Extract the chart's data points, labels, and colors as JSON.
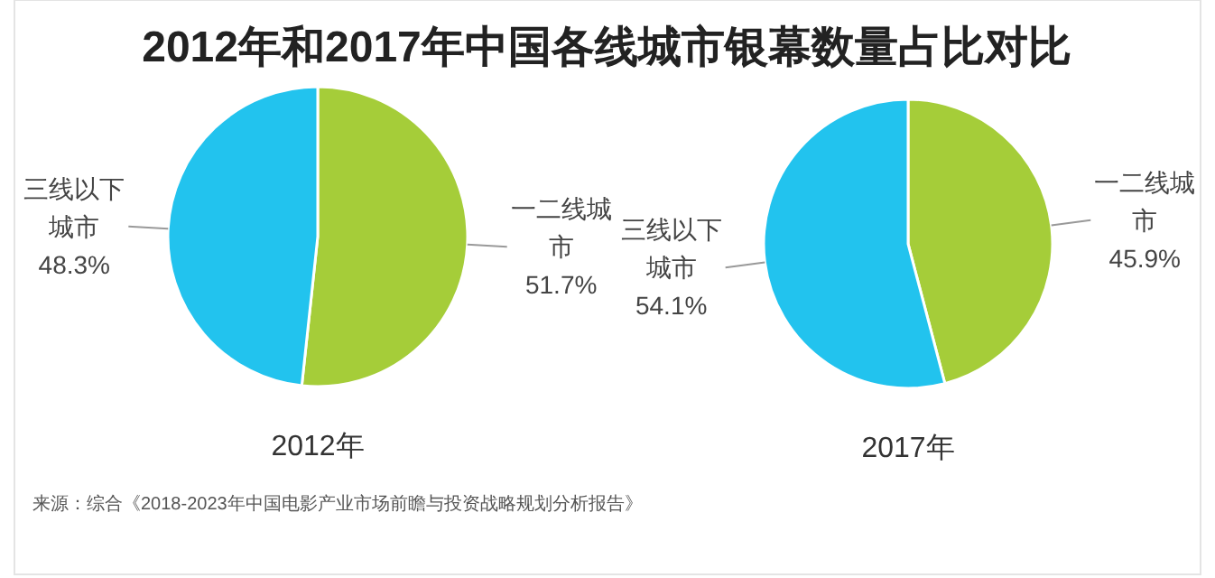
{
  "chart_data": [
    {
      "type": "other",
      "title": "2012年和2017年中国各线城市银幕数量占比对比",
      "annotations": [
        "来源：综合《2018-2023年中国电影产业市场前瞻与投资战略规划分析报告》"
      ]
    },
    {
      "type": "pie",
      "xlabel": "2012年",
      "categories": [
        "一二线城市",
        "三线以下城市"
      ],
      "values": [
        51.7,
        48.3
      ],
      "value_labels": [
        "51.7%",
        "48.3%"
      ],
      "colors": [
        "#a5cd39",
        "#22c3ee"
      ]
    },
    {
      "type": "pie",
      "xlabel": "2017年",
      "categories": [
        "一二线城市",
        "三线以下城市"
      ],
      "values": [
        45.9,
        54.1
      ],
      "value_labels": [
        "45.9%",
        "54.1%"
      ],
      "colors": [
        "#a5cd39",
        "#22c3ee"
      ]
    }
  ]
}
